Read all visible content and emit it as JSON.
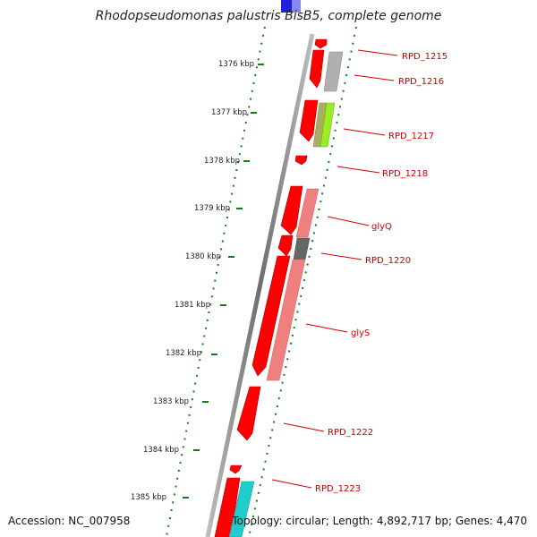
{
  "title": "Rhodopseudomonas palustris BisB5, complete genome",
  "accession": "Accession: NC_007958",
  "topology": "Topology: circular; Length: 4,892,717 bp; Genes: 4,470",
  "ticks": [
    "1376 kbp",
    "1377 kbp",
    "1378 kbp",
    "1379 kbp",
    "1380 kbp",
    "1381 kbp",
    "1382 kbp",
    "1383 kbp",
    "1384 kbp",
    "1385 kbp"
  ],
  "genes": [
    "RPD_1215",
    "RPD_1216",
    "RPD_1217",
    "RPD_1218",
    "glyQ",
    "RPD_1220",
    "glyS",
    "RPD_1222",
    "RPD_1223"
  ],
  "colors": {
    "cds": "#ff0000",
    "backbone": "#888888",
    "tick": "#1a7a1a",
    "label": "#cc0000",
    "cog_light_red": "#f08080",
    "cog_grey": "#b0b0b0",
    "cog_olive": "#a8b060",
    "cog_lime": "#99ee22",
    "cog_dark_grey": "#666666",
    "cog_cyan": "#22cccc",
    "cog_blue": "#2020dd"
  }
}
